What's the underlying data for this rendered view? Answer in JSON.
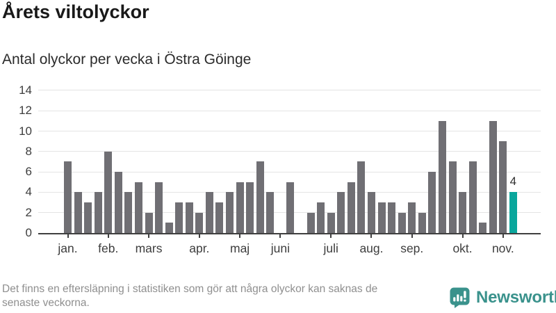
{
  "header": {
    "title": "Årets viltolyckor",
    "subtitle": "Antal olyckor per vecka i Östra Göinge"
  },
  "chart_data": {
    "type": "bar",
    "title": "Årets viltolyckor",
    "subtitle": "Antal olyckor per vecka i Östra Göinge",
    "x_unit": "week",
    "weeks": [
      1,
      2,
      3,
      4,
      5,
      6,
      7,
      8,
      9,
      10,
      11,
      12,
      13,
      14,
      15,
      16,
      17,
      18,
      19,
      20,
      21,
      22,
      23,
      24,
      25,
      26,
      27,
      28,
      29,
      30,
      31,
      32,
      33,
      34,
      35,
      36,
      37,
      38,
      39,
      40,
      41,
      42,
      43,
      44,
      45
    ],
    "values": [
      7,
      4,
      3,
      4,
      8,
      6,
      4,
      5,
      2,
      5,
      1,
      3,
      3,
      2,
      4,
      3,
      4,
      5,
      5,
      7,
      4,
      0,
      5,
      0,
      2,
      3,
      2,
      4,
      5,
      7,
      4,
      3,
      3,
      2,
      3,
      2,
      6,
      11,
      7,
      4,
      7,
      1,
      11,
      9,
      4
    ],
    "month_ticks": [
      {
        "label": "jan.",
        "week": 1
      },
      {
        "label": "feb.",
        "week": 5
      },
      {
        "label": "mars",
        "week": 9
      },
      {
        "label": "apr.",
        "week": 14
      },
      {
        "label": "maj",
        "week": 18
      },
      {
        "label": "juni",
        "week": 22
      },
      {
        "label": "juli",
        "week": 27
      },
      {
        "label": "aug.",
        "week": 31
      },
      {
        "label": "sep.",
        "week": 35
      },
      {
        "label": "okt.",
        "week": 40
      },
      {
        "label": "nov.",
        "week": 44
      }
    ],
    "ylim": [
      0,
      14
    ],
    "yticks": [
      0,
      2,
      4,
      6,
      8,
      10,
      12,
      14
    ],
    "grid": "horizontal",
    "legend": false,
    "highlight": {
      "index": 44,
      "label": "4"
    },
    "colors": {
      "bar": "#706f74",
      "highlight": "#0aa69c",
      "grid": "#e4e4e4",
      "axis": "#3f3f3f",
      "tick_label": "#3d3d3d"
    }
  },
  "footer": {
    "note_line1": "Det finns en eftersläpning i statistiken som gör att några olyckor kan saknas de",
    "note_line2": "senaste veckorna."
  },
  "logo": {
    "text": "Newsworthy",
    "color": "#3a928c",
    "icon": "newsworthy-logo-icon"
  }
}
